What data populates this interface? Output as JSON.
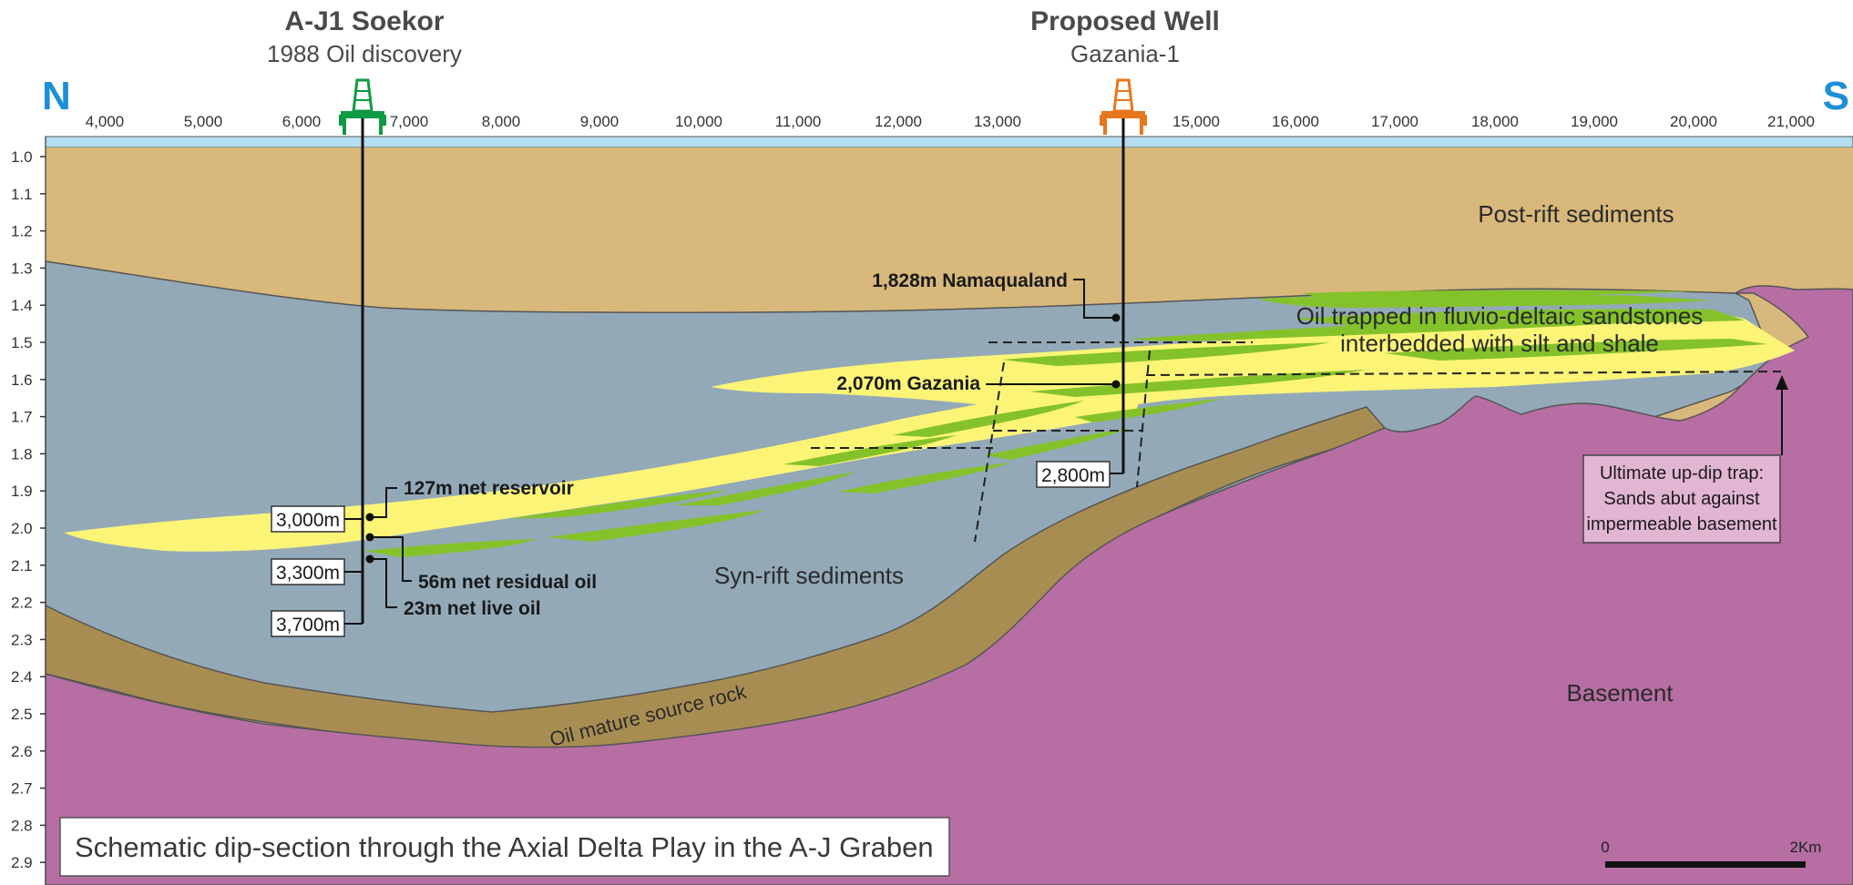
{
  "wells": [
    {
      "title": "A-J1 Soekor",
      "subtitle": "1988 Oil discovery",
      "rig_color": "#0f9a43"
    },
    {
      "title": "Proposed Well",
      "subtitle": "Gazania-1",
      "rig_color": "#e8761c"
    }
  ],
  "compass": {
    "north": "N",
    "south": "S"
  },
  "x_axis": {
    "ticks": [
      "4,000",
      "5,000",
      "6,000",
      "7,000",
      "8,000",
      "9,000",
      "10,000",
      "11,000",
      "12,000",
      "13,000",
      "15,000",
      "16,000",
      "17,000",
      "18,000",
      "19,000",
      "20,000",
      "21,000"
    ]
  },
  "y_axis": {
    "ticks": [
      "1.0",
      "1.1",
      "1.2",
      "1.3",
      "1.4",
      "1.5",
      "1.6",
      "1.7",
      "1.8",
      "1.9",
      "2.0",
      "2.1",
      "2.2",
      "2.3",
      "2.4",
      "2.5",
      "2.6",
      "2.7",
      "2.8",
      "2.9"
    ]
  },
  "regions": {
    "post_rift": "Post-rift sediments",
    "syn_rift": "Syn-rift sediments",
    "basement": "Basement",
    "source_rock": "Oil mature source rock",
    "oil_trapped_1": "Oil trapped in fluvio-deltaic sandstones",
    "oil_trapped_2": "interbedded with silt and shale"
  },
  "annotations": {
    "namaqualand": "1,828m Namaqualand",
    "gazania": "2,070m Gazania",
    "td_proposed": "2,800m",
    "d3000": "3,000m",
    "d3300": "3,300m",
    "d3700": "3,700m",
    "net_reservoir": "127m net reservoir",
    "residual_oil": "56m net residual oil",
    "live_oil": "23m net live oil"
  },
  "callout": {
    "line1": "Ultimate up-dip trap:",
    "line2": "Sands abut against",
    "line3": "impermeable basement"
  },
  "caption": "Schematic dip-section through the Axial Delta Play in the A-J Graben",
  "scale_bar": {
    "start": "0",
    "end": "2Km"
  },
  "colors": {
    "water": "#b6def3",
    "post_rift": "#d8b87b",
    "syn_rift": "#93a9b8",
    "source_rock": "#a88d52",
    "basement": "#b66ea3",
    "sand": "#fbf477",
    "oil": "#84c22a",
    "callout_bg": "#e2b5d3"
  }
}
